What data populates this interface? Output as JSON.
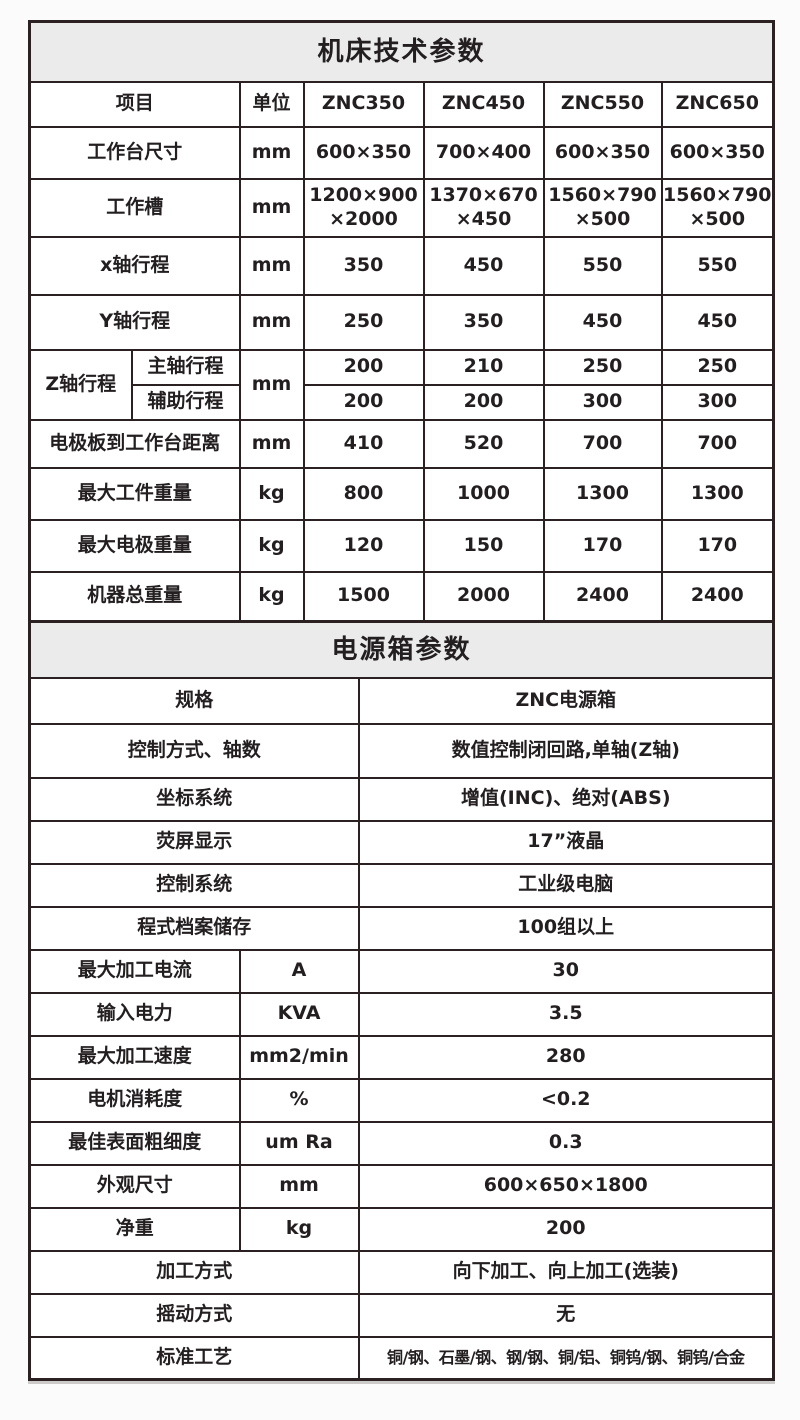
{
  "colors": {
    "border": "#2b2123",
    "title_band_bg": "#ebebeb",
    "cell_bg": "#ffffff",
    "text": "#231f20"
  },
  "machine_table": {
    "title": "机床技术参数",
    "header": {
      "item": "项目",
      "unit": "单位",
      "models": [
        "ZNC350",
        "ZNC450",
        "ZNC550",
        "ZNC650"
      ]
    },
    "rows_top": [
      {
        "label": "工作台尺寸",
        "unit": "mm",
        "values": [
          "600×350",
          "700×400",
          "600×350",
          "600×350"
        ]
      },
      {
        "label": "工作槽",
        "unit": "mm",
        "values": [
          "1200×900\n×2000",
          "1370×670\n×450",
          "1560×790\n×500",
          "1560×790\n×500"
        ]
      },
      {
        "label": "x轴行程",
        "unit": "mm",
        "values": [
          "350",
          "450",
          "550",
          "550"
        ]
      },
      {
        "label": "Y轴行程",
        "unit": "mm",
        "values": [
          "250",
          "350",
          "450",
          "450"
        ]
      }
    ],
    "z_axis": {
      "label": "Z轴行程",
      "unit": "mm",
      "sub_rows": [
        {
          "label": "主轴行程",
          "values": [
            "200",
            "210",
            "250",
            "250"
          ]
        },
        {
          "label": "辅助行程",
          "values": [
            "200",
            "200",
            "300",
            "300"
          ]
        }
      ]
    },
    "rows_bottom": [
      {
        "label": "电极板到工作台距离",
        "unit": "mm",
        "values": [
          "410",
          "520",
          "700",
          "700"
        ]
      },
      {
        "label": "最大工件重量",
        "unit": "kg",
        "values": [
          "800",
          "1000",
          "1300",
          "1300"
        ]
      },
      {
        "label": "最大电极重量",
        "unit": "kg",
        "values": [
          "120",
          "150",
          "170",
          "170"
        ]
      },
      {
        "label": "机器总重量",
        "unit": "kg",
        "values": [
          "1500",
          "2000",
          "2400",
          "2400"
        ]
      }
    ]
  },
  "power_table": {
    "title": "电源箱参数",
    "rows": [
      {
        "label": "规格",
        "value": "ZNC电源箱"
      },
      {
        "label": "控制方式、轴数",
        "value": "数值控制闭回路,单轴(Z轴)"
      },
      {
        "label": "坐标系统",
        "value": "增值(INC)、绝对(ABS)"
      },
      {
        "label": "荧屏显示",
        "value": "17”液晶"
      },
      {
        "label": "控制系统",
        "value": "工业级电脑"
      },
      {
        "label": "程式档案储存",
        "value": "100组以上"
      },
      {
        "label": "最大加工电流",
        "unit": "A",
        "value": "30"
      },
      {
        "label": "输入电力",
        "unit": "KVA",
        "value": "3.5"
      },
      {
        "label": "最大加工速度",
        "unit": "mm2/min",
        "value": "280"
      },
      {
        "label": "电机消耗度",
        "unit": "%",
        "value": "<0.2"
      },
      {
        "label": "最佳表面粗细度",
        "unit": "um Ra",
        "value": "0.3"
      },
      {
        "label": "外观尺寸",
        "unit": "mm",
        "value": "600×650×1800"
      },
      {
        "label": "净重",
        "unit": "kg",
        "value": "200"
      },
      {
        "label": "加工方式",
        "value": "向下加工、向上加工(选装)"
      },
      {
        "label": "摇动方式",
        "value": "无"
      },
      {
        "label": "标准工艺",
        "value": "铜/钢、石墨/钢、钢/钢、铜/铝、铜钨/钢、铜钨/合金"
      }
    ]
  }
}
